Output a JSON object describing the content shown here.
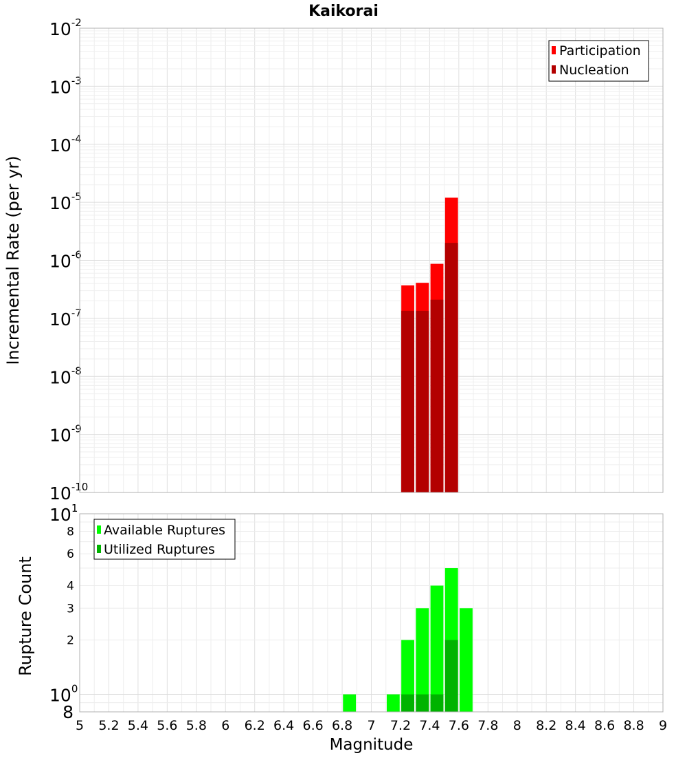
{
  "chart_data": [
    {
      "type": "bar",
      "title": "Kaikorai",
      "xlabel": "Magnitude",
      "ylabel": "Incremental Rate (per yr)",
      "yscale": "log",
      "ylim": [
        1e-10,
        0.01
      ],
      "xlim": [
        5,
        9
      ],
      "bin_width": 0.1,
      "ytick_labels": [
        {
          "base": "10",
          "exp": "-10"
        },
        {
          "base": "10",
          "exp": "-9"
        },
        {
          "base": "10",
          "exp": "-8"
        },
        {
          "base": "10",
          "exp": "-7"
        },
        {
          "base": "10",
          "exp": "-6"
        },
        {
          "base": "10",
          "exp": "-5"
        },
        {
          "base": "10",
          "exp": "-4"
        },
        {
          "base": "10",
          "exp": "-3"
        },
        {
          "base": "10",
          "exp": "-2"
        }
      ],
      "legend": {
        "position": "top-right",
        "entries": [
          {
            "label": "Participation",
            "color": "#ff0000"
          },
          {
            "label": "Nucleation",
            "color": "#b30000"
          }
        ]
      },
      "series": [
        {
          "name": "Participation",
          "color": "#ff0000",
          "x": [
            7.25,
            7.35,
            7.45,
            7.55
          ],
          "values": [
            3.7e-07,
            4.1e-07,
            8.7e-07,
            1.2e-05
          ]
        },
        {
          "name": "Nucleation",
          "color": "#b30000",
          "x": [
            7.25,
            7.35,
            7.45,
            7.55
          ],
          "values": [
            1.35e-07,
            1.35e-07,
            2.1e-07,
            2e-06
          ]
        }
      ]
    },
    {
      "type": "bar",
      "title": "",
      "xlabel": "Magnitude",
      "ylabel": "Rupture Count",
      "yscale": "log",
      "ylim": [
        0.8,
        10
      ],
      "xlim": [
        5,
        9
      ],
      "bin_width": 0.1,
      "x_ticks": [
        "5",
        "5.2",
        "5.4",
        "5.6",
        "5.8",
        "6",
        "6.2",
        "6.4",
        "6.6",
        "6.8",
        "7",
        "7.2",
        "7.4",
        "7.6",
        "7.8",
        "8",
        "8.2",
        "8.4",
        "8.6",
        "8.8",
        "9"
      ],
      "ytick_major": [
        {
          "value": 1,
          "base": "10",
          "exp": "0"
        },
        {
          "value": 10,
          "base": "10",
          "exp": "1"
        }
      ],
      "ytick_minor": [
        {
          "value": 2,
          "label": "2"
        },
        {
          "value": 3,
          "label": "3"
        },
        {
          "value": 4,
          "label": "4"
        },
        {
          "value": 6,
          "label": "6"
        },
        {
          "value": 8,
          "label": "8"
        }
      ],
      "ytick_bottom": {
        "value": 0.8,
        "label": "8"
      },
      "legend": {
        "position": "top-left",
        "entries": [
          {
            "label": "Available Ruptures",
            "color": "#00ff00"
          },
          {
            "label": "Utilized Ruptures",
            "color": "#00b300"
          }
        ]
      },
      "series": [
        {
          "name": "Available Ruptures",
          "color": "#00ff00",
          "x": [
            6.85,
            7.15,
            7.25,
            7.35,
            7.45,
            7.55,
            7.65
          ],
          "values": [
            1,
            1,
            2,
            3,
            4,
            5,
            3
          ]
        },
        {
          "name": "Utilized Ruptures",
          "color": "#00b300",
          "x": [
            7.25,
            7.35,
            7.45,
            7.55
          ],
          "values": [
            1,
            1,
            1,
            2
          ]
        }
      ]
    }
  ]
}
